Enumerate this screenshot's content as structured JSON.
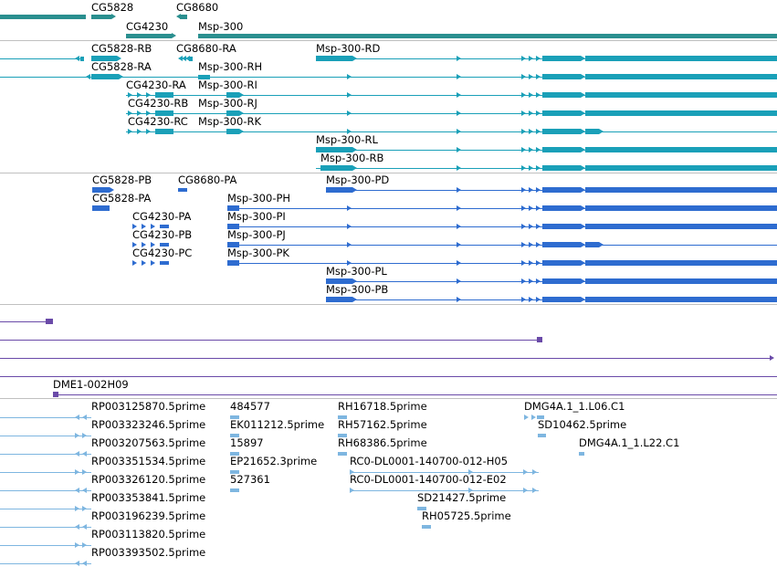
{
  "colors": {
    "gene": "#2a8f8f",
    "mrna": "#1aa0b8",
    "protein": "#2e6cd0",
    "cdna": "#6a4aa8",
    "est": "#7eb6e0"
  },
  "tracks": {
    "genes": [
      "CG5828",
      "CG8680",
      "CG4230",
      "Msp-300"
    ],
    "mrna": [
      "CG5828-RB",
      "CG8680-RA",
      "Msp-300-RD",
      "CG5828-RA",
      "Msp-300-RH",
      "CG4230-RA",
      "Msp-300-RI",
      "CG4230-RB",
      "Msp-300-RJ",
      "CG4230-RC",
      "Msp-300-RK",
      "Msp-300-RL",
      "Msp-300-RB"
    ],
    "proteins": [
      "CG5828-PB",
      "CG8680-PA",
      "Msp-300-PD",
      "CG5828-PA",
      "Msp-300-PH",
      "CG4230-PA",
      "Msp-300-PI",
      "CG4230-PB",
      "Msp-300-PJ",
      "CG4230-PC",
      "Msp-300-PK",
      "Msp-300-PL",
      "Msp-300-PB"
    ],
    "cdna": [
      "DME1-002H09"
    ],
    "est": [
      "RP003125870.5prime",
      "484577",
      "RH16718.5prime",
      "DMG4A.1_1.L06.C1",
      "RP003323246.5prime",
      "EK011212.5prime",
      "RH57162.5prime",
      "SD10462.5prime",
      "RP003207563.5prime",
      "15897",
      "RH68386.5prime",
      "DMG4A.1_1.L22.C1",
      "RP003351534.5prime",
      "EP21652.3prime",
      "RC0-DL0001-140700-012-H05",
      "RP003326120.5prime",
      "527361",
      "RC0-DL0001-140700-012-E02",
      "RP003353841.5prime",
      "SD21427.5prime",
      "RP003196239.5prime",
      "RH05725.5prime",
      "RP003113820.5prime",
      "RP003393502.5prime"
    ]
  }
}
